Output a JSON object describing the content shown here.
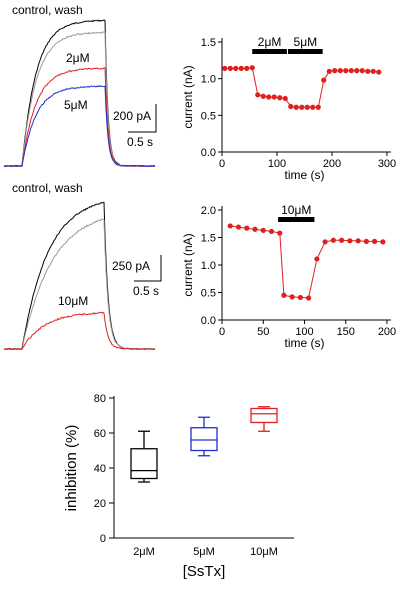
{
  "panels": {
    "a": {
      "title": "control, wash",
      "labels": [
        "2μM",
        "5μM"
      ],
      "scale_bar": {
        "y": "200 pA",
        "x": "0.5 s"
      },
      "colors": {
        "control": "#000000",
        "wash": "#9a9a9a",
        "2uM": "#e02020",
        "5uM": "#1f2fc8"
      }
    },
    "c": {
      "title": "control, wash",
      "labels": [
        "10μM"
      ],
      "scale_bar": {
        "y": "250 pA",
        "x": "0.5 s"
      },
      "colors": {
        "control": "#000000",
        "wash": "#9a9a9a",
        "10uM": "#e02020"
      }
    }
  },
  "chart_data": [
    {
      "id": "b",
      "type": "scatter",
      "xlabel": "time (s)",
      "ylabel": "current (nA)",
      "xlim": [
        0,
        300
      ],
      "ylim": [
        0,
        1.5
      ],
      "xticks": [
        0,
        100,
        200,
        300
      ],
      "yticks": [
        0.0,
        0.5,
        1.0,
        1.5
      ],
      "color": "#e02020",
      "application_bars": [
        {
          "label": "2μM",
          "start": 55,
          "end": 118
        },
        {
          "label": "5μM",
          "start": 120,
          "end": 183
        }
      ],
      "x": [
        5,
        15,
        25,
        35,
        45,
        55,
        65,
        75,
        85,
        95,
        105,
        115,
        125,
        135,
        145,
        155,
        165,
        175,
        185,
        195,
        205,
        215,
        225,
        235,
        245,
        255,
        265,
        275,
        285
      ],
      "y": [
        1.14,
        1.14,
        1.14,
        1.14,
        1.14,
        1.15,
        0.78,
        0.76,
        0.75,
        0.75,
        0.74,
        0.73,
        0.62,
        0.61,
        0.61,
        0.61,
        0.61,
        0.61,
        0.98,
        1.1,
        1.11,
        1.11,
        1.11,
        1.11,
        1.11,
        1.11,
        1.1,
        1.1,
        1.09
      ]
    },
    {
      "id": "d",
      "type": "scatter",
      "xlabel": "time (s)",
      "ylabel": "current (nA)",
      "xlim": [
        0,
        200
      ],
      "ylim": [
        0,
        2.0
      ],
      "xticks": [
        0,
        50,
        100,
        150,
        200
      ],
      "yticks": [
        0.0,
        0.5,
        1.0,
        1.5,
        2.0
      ],
      "color": "#e02020",
      "application_bars": [
        {
          "label": "10μM",
          "start": 68,
          "end": 112
        }
      ],
      "x": [
        10,
        20,
        30,
        40,
        50,
        60,
        70,
        75,
        85,
        95,
        105,
        115,
        125,
        135,
        145,
        155,
        165,
        175,
        185,
        195
      ],
      "y": [
        1.71,
        1.69,
        1.67,
        1.65,
        1.63,
        1.61,
        1.58,
        0.45,
        0.42,
        0.41,
        0.4,
        1.11,
        1.42,
        1.45,
        1.45,
        1.44,
        1.44,
        1.43,
        1.43,
        1.42
      ]
    },
    {
      "id": "e",
      "type": "box",
      "xlabel": "[SsTx]",
      "ylabel": "inhibition (%)",
      "ylim": [
        0,
        80
      ],
      "yticks": [
        0,
        20,
        40,
        60,
        80
      ],
      "categories": [
        "2μM",
        "5μM",
        "10μM"
      ],
      "boxes": [
        {
          "category": "2μM",
          "min": 32,
          "q1": 34,
          "median": 38.5,
          "q3": 51,
          "max": 61,
          "color": "#000000"
        },
        {
          "category": "5μM",
          "min": 47,
          "q1": 50,
          "median": 56,
          "q3": 63,
          "max": 69,
          "color": "#1f2fc8"
        },
        {
          "category": "10μM",
          "min": 61,
          "q1": 66,
          "median": 71,
          "q3": 74,
          "max": 75,
          "color": "#e02020"
        }
      ]
    }
  ]
}
